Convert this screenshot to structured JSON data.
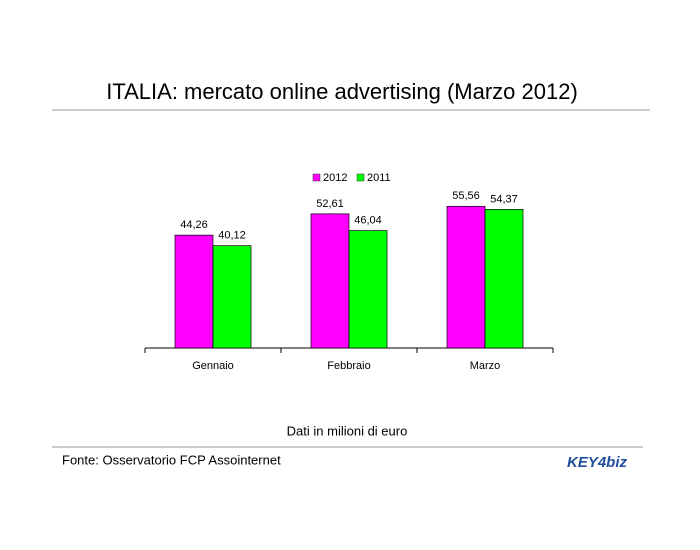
{
  "chart_data": {
    "type": "bar",
    "title": "ITALIA: mercato online advertising (Marzo 2012)",
    "categories": [
      "Gennaio",
      "Febbraio",
      "Marzo"
    ],
    "series": [
      {
        "name": "2012",
        "color": "#ff00ff",
        "values": [
          44.26,
          52.61,
          55.56
        ],
        "value_labels": [
          "44,26",
          "52,61",
          "55,56"
        ]
      },
      {
        "name": "2011",
        "color": "#00ff00",
        "values": [
          40.12,
          46.04,
          54.37
        ],
        "value_labels": [
          "40,12",
          "46,04",
          "54,37"
        ]
      }
    ],
    "annotation": "Dati in milioni di euro",
    "source": "Fonte: Osservatorio FCP Assointernet"
  },
  "logo": "KEY4biz"
}
